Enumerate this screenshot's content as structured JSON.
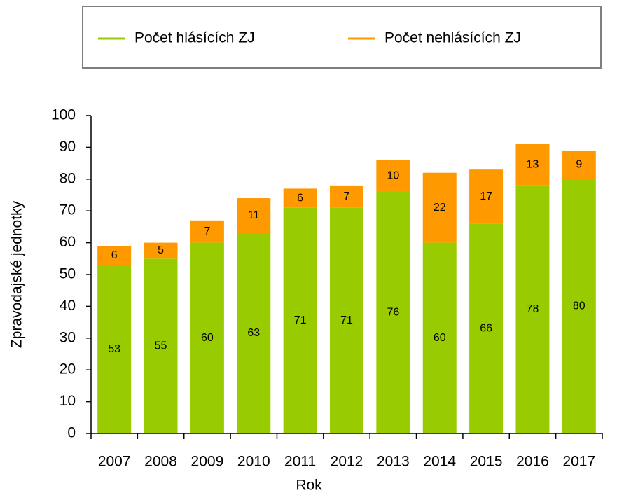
{
  "chart_data": {
    "type": "stacked_bar",
    "x_label": "Rok",
    "y_label": "Zpravodajské jednotky",
    "categories": [
      "2007",
      "2008",
      "2009",
      "2010",
      "2011",
      "2012",
      "2013",
      "2014",
      "2015",
      "2016",
      "2017"
    ],
    "series": [
      {
        "name": "Počet hlásících ZJ",
        "color": "#99cc00",
        "values": [
          53,
          55,
          60,
          63,
          71,
          71,
          76,
          60,
          66,
          78,
          80
        ]
      },
      {
        "name": "Počet nehlásících ZJ",
        "color": "#ff9900",
        "values": [
          6,
          5,
          7,
          11,
          6,
          7,
          10,
          22,
          17,
          13,
          9
        ]
      }
    ],
    "ylim": [
      0,
      100
    ],
    "yticks": [
      0,
      10,
      20,
      30,
      40,
      50,
      60,
      70,
      80,
      90,
      100
    ],
    "legend": "top"
  }
}
